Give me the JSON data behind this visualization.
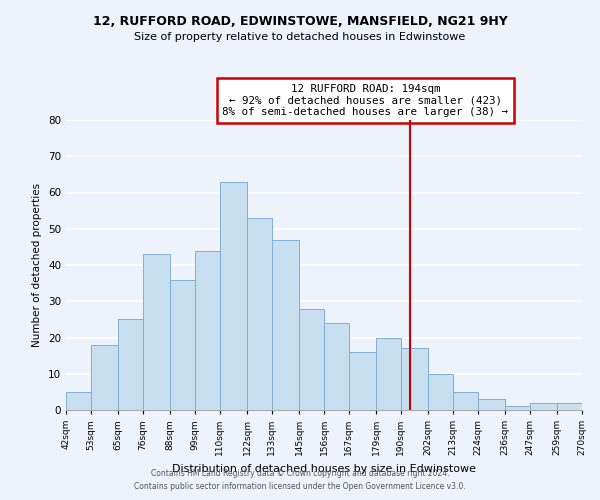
{
  "title": "12, RUFFORD ROAD, EDWINSTOWE, MANSFIELD, NG21 9HY",
  "subtitle": "Size of property relative to detached houses in Edwinstowe",
  "xlabel": "Distribution of detached houses by size in Edwinstowe",
  "ylabel": "Number of detached properties",
  "bins": [
    42,
    53,
    65,
    76,
    88,
    99,
    110,
    122,
    133,
    145,
    156,
    167,
    179,
    190,
    202,
    213,
    224,
    236,
    247,
    259,
    270
  ],
  "counts": [
    5,
    18,
    25,
    43,
    36,
    44,
    63,
    53,
    47,
    28,
    24,
    16,
    20,
    17,
    10,
    5,
    3,
    1,
    2,
    2
  ],
  "bar_color": "#c8dff0",
  "bar_edge_color": "#7fb0d8",
  "vline_x": 194,
  "vline_color": "#cc0000",
  "ylim": [
    0,
    80
  ],
  "yticks": [
    0,
    10,
    20,
    30,
    40,
    50,
    60,
    70,
    80
  ],
  "annotation_title": "12 RUFFORD ROAD: 194sqm",
  "annotation_line1": "← 92% of detached houses are smaller (423)",
  "annotation_line2": "8% of semi-detached houses are larger (38) →",
  "footer1": "Contains HM Land Registry data © Crown copyright and database right 2024.",
  "footer2": "Contains public sector information licensed under the Open Government Licence v3.0.",
  "tick_labels": [
    "42sqm",
    "53sqm",
    "65sqm",
    "76sqm",
    "88sqm",
    "99sqm",
    "110sqm",
    "122sqm",
    "133sqm",
    "145sqm",
    "156sqm",
    "167sqm",
    "179sqm",
    "190sqm",
    "202sqm",
    "213sqm",
    "224sqm",
    "236sqm",
    "247sqm",
    "259sqm",
    "270sqm"
  ],
  "background_color": "#eef2fb"
}
